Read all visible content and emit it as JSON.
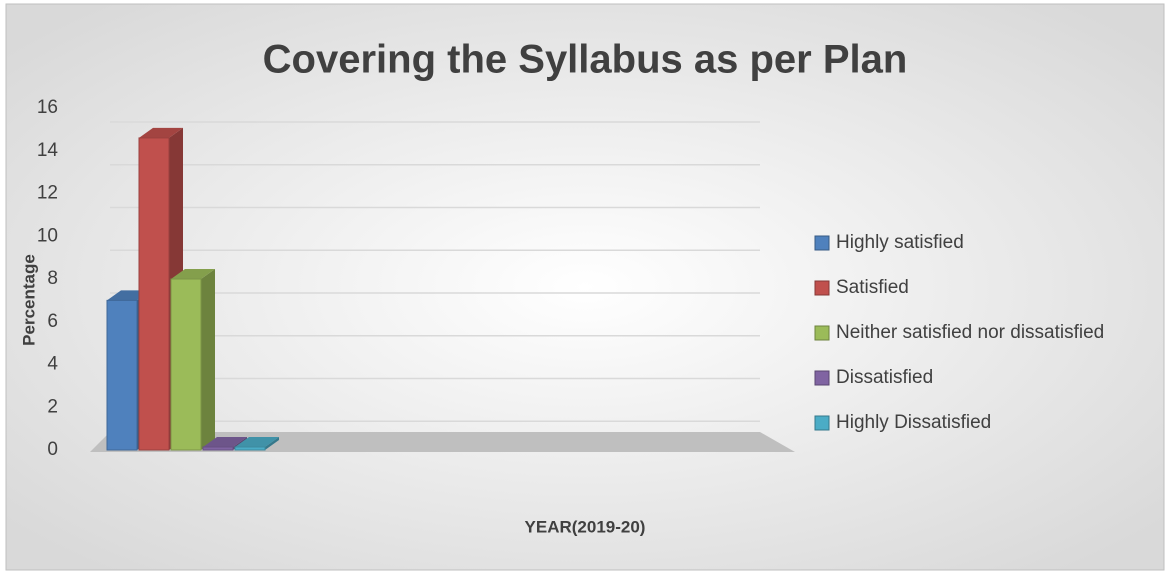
{
  "chart_data": {
    "type": "bar",
    "title": "Covering the Syllabus as per Plan",
    "x_label": "YEAR(2019-20)",
    "y_label": "Percentage",
    "categories": [
      null
    ],
    "series": [
      {
        "name": "Highly satisfied",
        "color": "#4f81bd",
        "values": [
          7
        ]
      },
      {
        "name": "Satisfied",
        "color": "#c0504d",
        "values": [
          14.6
        ]
      },
      {
        "name": "Neither satisfied nor dissatisfied",
        "color": "#9bbb59",
        "values": [
          8
        ]
      },
      {
        "name": "Dissatisfied",
        "color": "#8064a2",
        "values": [
          0
        ]
      },
      {
        "name": "Highly Dissatisfied",
        "color": "#4bacc6",
        "values": [
          0
        ]
      }
    ],
    "ylim": [
      0,
      16
    ],
    "yticks": [
      0,
      2,
      4,
      6,
      8,
      10,
      12,
      14,
      16
    ],
    "grid": true,
    "legend": "right"
  }
}
